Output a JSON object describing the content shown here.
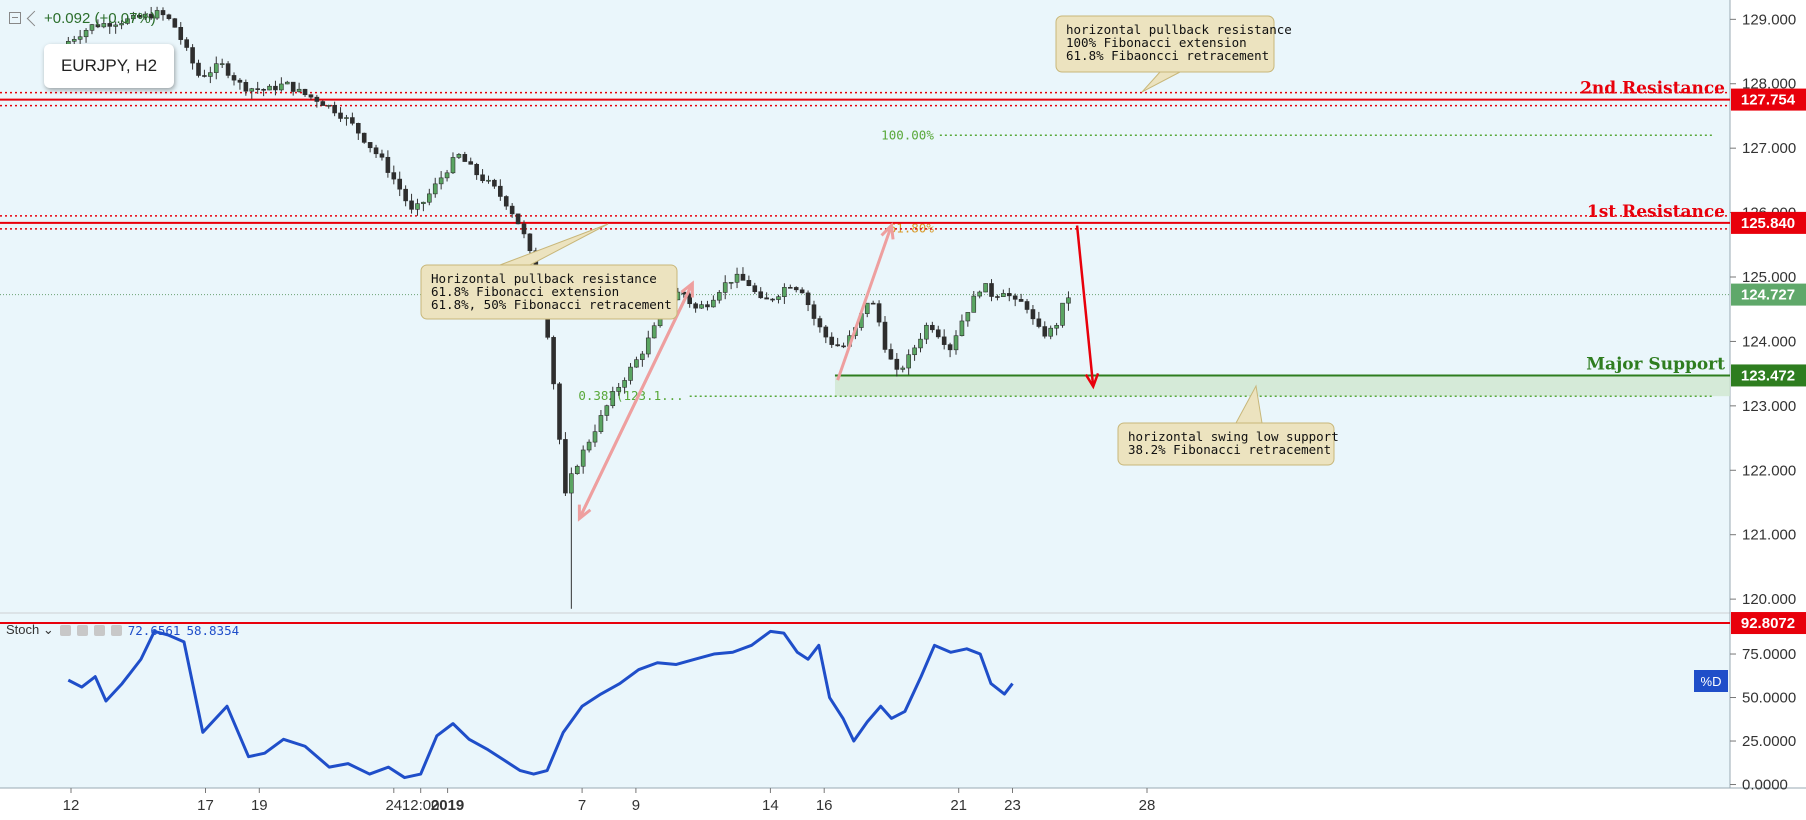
{
  "header": {
    "change_text": "+0.092 (+0.07%)",
    "symbol": "EURJPY, H2"
  },
  "chart_data": [
    {
      "type": "candlestick",
      "symbol": "EURJPY",
      "timeframe": "H2",
      "price_axis_ticks": [
        "129.000",
        "128.000",
        "127.000",
        "126.000",
        "125.000",
        "124.000",
        "123.000",
        "122.000",
        "121.000",
        "120.000"
      ],
      "ylim": [
        119.8,
        129.3
      ],
      "time_axis_labels": [
        {
          "label": "12",
          "x": 0
        },
        {
          "label": "17",
          "x": 5
        },
        {
          "label": "19",
          "x": 7
        },
        {
          "label": "24",
          "x": 12
        },
        {
          "label": "12:00",
          "x": 13
        },
        {
          "label": "2019",
          "x": 14
        },
        {
          "label": "7",
          "x": 19
        },
        {
          "label": "9",
          "x": 21
        },
        {
          "label": "14",
          "x": 26
        },
        {
          "label": "16",
          "x": 28
        },
        {
          "label": "21",
          "x": 33
        },
        {
          "label": "23",
          "x": 35
        },
        {
          "label": "28",
          "x": 40
        }
      ],
      "price_path": [
        [
          -0.1,
          128.6
        ],
        [
          1.0,
          128.9
        ],
        [
          2.5,
          129.0
        ],
        [
          3.5,
          129.1
        ],
        [
          4.0,
          128.95
        ],
        [
          5.0,
          128.1
        ],
        [
          5.8,
          128.3
        ],
        [
          6.6,
          127.95
        ],
        [
          7.5,
          127.9
        ],
        [
          8.2,
          128.0
        ],
        [
          8.8,
          127.85
        ],
        [
          9.4,
          127.75
        ],
        [
          10.0,
          127.6
        ],
        [
          10.6,
          127.4
        ],
        [
          11.2,
          127.1
        ],
        [
          11.8,
          126.8
        ],
        [
          12.4,
          126.4
        ],
        [
          12.9,
          126.0
        ],
        [
          13.4,
          126.2
        ],
        [
          13.9,
          126.5
        ],
        [
          14.6,
          126.9
        ],
        [
          15.3,
          126.6
        ],
        [
          15.9,
          126.4
        ],
        [
          16.5,
          126.1
        ],
        [
          16.9,
          125.8
        ],
        [
          17.2,
          125.5
        ],
        [
          17.6,
          124.8
        ],
        [
          18.0,
          124.0
        ],
        [
          18.3,
          122.8
        ],
        [
          18.6,
          121.6
        ],
        [
          18.9,
          122.0
        ],
        [
          19.4,
          122.4
        ],
        [
          19.9,
          122.8
        ],
        [
          20.4,
          123.2
        ],
        [
          20.9,
          123.5
        ],
        [
          21.4,
          123.8
        ],
        [
          21.9,
          124.2
        ],
        [
          22.4,
          124.6
        ],
        [
          22.9,
          124.8
        ],
        [
          23.4,
          124.5
        ],
        [
          23.9,
          124.6
        ],
        [
          24.4,
          124.85
        ],
        [
          24.9,
          125.0
        ],
        [
          25.4,
          124.9
        ],
        [
          25.9,
          124.6
        ],
        [
          26.4,
          124.7
        ],
        [
          26.9,
          124.9
        ],
        [
          27.4,
          124.8
        ],
        [
          27.9,
          124.3
        ],
        [
          28.4,
          124.0
        ],
        [
          28.9,
          123.9
        ],
        [
          29.4,
          124.2
        ],
        [
          29.9,
          124.7
        ],
        [
          30.2,
          124.4
        ],
        [
          30.5,
          123.9
        ],
        [
          30.9,
          123.5
        ],
        [
          31.3,
          123.7
        ],
        [
          31.7,
          124.0
        ],
        [
          32.1,
          124.3
        ],
        [
          32.5,
          124.1
        ],
        [
          32.9,
          123.9
        ],
        [
          33.3,
          124.3
        ],
        [
          33.7,
          124.6
        ],
        [
          34.1,
          124.9
        ],
        [
          34.5,
          124.7
        ],
        [
          34.9,
          124.8
        ],
        [
          35.3,
          124.6
        ],
        [
          35.7,
          124.6
        ],
        [
          36.1,
          124.2
        ],
        [
          36.5,
          124.1
        ],
        [
          36.9,
          124.3
        ],
        [
          37.2,
          124.7
        ]
      ],
      "last_price": 124.727,
      "levels": [
        {
          "label": "2nd Resistance",
          "value": 127.754,
          "tag": "127.754",
          "color": "#e8000b"
        },
        {
          "label": "1st Resistance",
          "value": 125.84,
          "tag": "125.840",
          "color": "#e8000b"
        },
        {
          "label": "Major Support",
          "value": 123.472,
          "tag": "123.472",
          "color": "#2e7d1f"
        }
      ],
      "last_price_tag": {
        "tag": "124.727",
        "color": "#5fa86a"
      },
      "fib_levels": [
        {
          "label": "100.00%",
          "value": 127.2,
          "color": "#59a83a"
        },
        {
          "label": "61.80%",
          "value": 125.75,
          "color": "#d99a2b"
        },
        {
          "label": "0.382(123.1...",
          "value": 123.15,
          "color": "#59a83a"
        }
      ],
      "annotations": [
        {
          "lines": [
            "horizontal pullback resistance",
            "100% Fibonacci extension",
            "61.8% Fibaoncci retracement"
          ]
        },
        {
          "lines": [
            "Horizontal pullback resistance",
            "61.8% Fibonacci extension",
            "61.8%, 50% Fibonacci retracement"
          ]
        },
        {
          "lines": [
            "horizontal swing low support",
            "38.2% Fibonacci retracement"
          ]
        }
      ]
    },
    {
      "type": "line",
      "indicator": "Stoch",
      "header_values": [
        "72.6561",
        "58.8354"
      ],
      "y_ticks": [
        "75.0000",
        "50.0000",
        "25.0000",
        "0.0000"
      ],
      "ylim": [
        -2,
        98
      ],
      "level_tag": "92.8072",
      "level_value": 92.8072,
      "series_badge": "%D",
      "series": [
        {
          "color": "#1f4ec9",
          "points": [
            [
              -0.1,
              60
            ],
            [
              0.4,
              56
            ],
            [
              0.9,
              62
            ],
            [
              1.3,
              48
            ],
            [
              1.9,
              58
            ],
            [
              2.6,
              72
            ],
            [
              3.1,
              88
            ],
            [
              3.6,
              86
            ],
            [
              4.2,
              82
            ],
            [
              4.9,
              30
            ],
            [
              5.8,
              45
            ],
            [
              6.6,
              16
            ],
            [
              7.2,
              18
            ],
            [
              7.9,
              26
            ],
            [
              8.7,
              22
            ],
            [
              9.6,
              10
            ],
            [
              10.3,
              12
            ],
            [
              11.1,
              6
            ],
            [
              11.8,
              10
            ],
            [
              12.4,
              4
            ],
            [
              13.0,
              6
            ],
            [
              13.6,
              28
            ],
            [
              14.2,
              35
            ],
            [
              14.8,
              26
            ],
            [
              15.5,
              20
            ],
            [
              16.1,
              14
            ],
            [
              16.7,
              8
            ],
            [
              17.2,
              6
            ],
            [
              17.7,
              8
            ],
            [
              18.3,
              30
            ],
            [
              19.0,
              45
            ],
            [
              19.7,
              52
            ],
            [
              20.4,
              58
            ],
            [
              21.1,
              66
            ],
            [
              21.8,
              70
            ],
            [
              22.5,
              69
            ],
            [
              23.2,
              72
            ],
            [
              23.9,
              75
            ],
            [
              24.6,
              76
            ],
            [
              25.3,
              80
            ],
            [
              26.0,
              88
            ],
            [
              26.5,
              87
            ],
            [
              27.0,
              76
            ],
            [
              27.4,
              72
            ],
            [
              27.8,
              80
            ],
            [
              28.2,
              50
            ],
            [
              28.7,
              38
            ],
            [
              29.1,
              25
            ],
            [
              29.6,
              36
            ],
            [
              30.1,
              45
            ],
            [
              30.5,
              38
            ],
            [
              31.0,
              42
            ],
            [
              31.6,
              62
            ],
            [
              32.1,
              80
            ],
            [
              32.7,
              76
            ],
            [
              33.3,
              78
            ],
            [
              33.8,
              75
            ],
            [
              34.2,
              58
            ],
            [
              34.7,
              52
            ],
            [
              35.0,
              58
            ]
          ]
        }
      ]
    }
  ]
}
